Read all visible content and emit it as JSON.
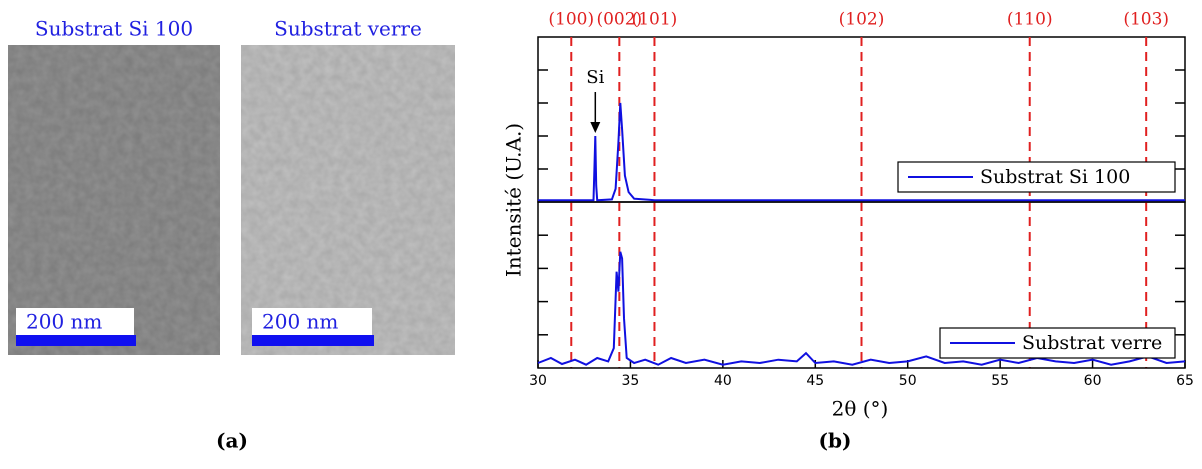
{
  "panel_a": {
    "images": [
      {
        "title": "Substrat Si 100",
        "scale_bar": "200 nm"
      },
      {
        "title": "Substrat verre",
        "scale_bar": "200 nm"
      }
    ],
    "caption": "(a)"
  },
  "panel_b": {
    "caption": "(b)"
  },
  "chart_data": [
    {
      "type": "line",
      "ylabel": "Intensité (U.A.)",
      "xlim": [
        30,
        65
      ],
      "ylim": [
        0,
        5
      ],
      "yticks": [
        1,
        2,
        3,
        4
      ],
      "legend": "lower right",
      "reference_lines": [
        {
          "x": 31.8,
          "label": "(100)"
        },
        {
          "x": 34.4,
          "label": "(002)"
        },
        {
          "x": 36.3,
          "label": "(101)"
        },
        {
          "x": 47.5,
          "label": "(102)"
        },
        {
          "x": 56.6,
          "label": "(110)"
        },
        {
          "x": 62.9,
          "label": "(103)"
        }
      ],
      "reference_color": "#e02020",
      "annotation": {
        "text": "Si",
        "x": 33.1,
        "y": 2.0
      },
      "series": [
        {
          "name": "Substrat Si 100",
          "color": "#1010e0",
          "x": [
            30,
            32,
            33.0,
            33.05,
            33.1,
            33.15,
            33.2,
            34,
            34.2,
            34.35,
            34.45,
            34.55,
            34.7,
            34.9,
            35.2,
            36,
            36.3,
            37,
            65
          ],
          "values": [
            0.05,
            0.05,
            0.05,
            1.0,
            2.0,
            0.5,
            0.05,
            0.08,
            0.4,
            1.8,
            3.0,
            2.2,
            0.8,
            0.3,
            0.1,
            0.07,
            0.05,
            0.05,
            0.05
          ]
        }
      ]
    },
    {
      "type": "line",
      "xlabel": "2θ (°)",
      "xlim": [
        30,
        65
      ],
      "ylim": [
        0,
        5
      ],
      "yticks": [
        1,
        2,
        3,
        4
      ],
      "xticks": [
        30,
        35,
        40,
        45,
        50,
        55,
        60,
        65
      ],
      "legend": "lower right",
      "series": [
        {
          "name": "Substrat verre",
          "color": "#1010e0",
          "x": [
            30,
            30.7,
            31.3,
            32,
            32.6,
            33.2,
            33.8,
            34.1,
            34.25,
            34.35,
            34.45,
            34.55,
            34.65,
            34.8,
            35.2,
            35.8,
            36.5,
            37.2,
            38,
            39,
            40,
            41,
            42,
            43,
            44,
            44.5,
            45,
            46,
            47,
            48,
            49,
            50,
            51,
            52,
            53,
            54,
            55,
            56,
            57,
            58,
            59,
            60,
            61,
            62,
            63,
            64,
            65
          ],
          "values": [
            0.15,
            0.3,
            0.12,
            0.25,
            0.1,
            0.3,
            0.2,
            0.6,
            2.9,
            2.3,
            3.5,
            3.3,
            1.5,
            0.3,
            0.15,
            0.25,
            0.1,
            0.3,
            0.15,
            0.25,
            0.1,
            0.2,
            0.15,
            0.25,
            0.2,
            0.45,
            0.15,
            0.2,
            0.1,
            0.25,
            0.15,
            0.2,
            0.35,
            0.15,
            0.2,
            0.1,
            0.25,
            0.15,
            0.3,
            0.2,
            0.15,
            0.25,
            0.1,
            0.2,
            0.35,
            0.15,
            0.2
          ]
        }
      ]
    }
  ]
}
